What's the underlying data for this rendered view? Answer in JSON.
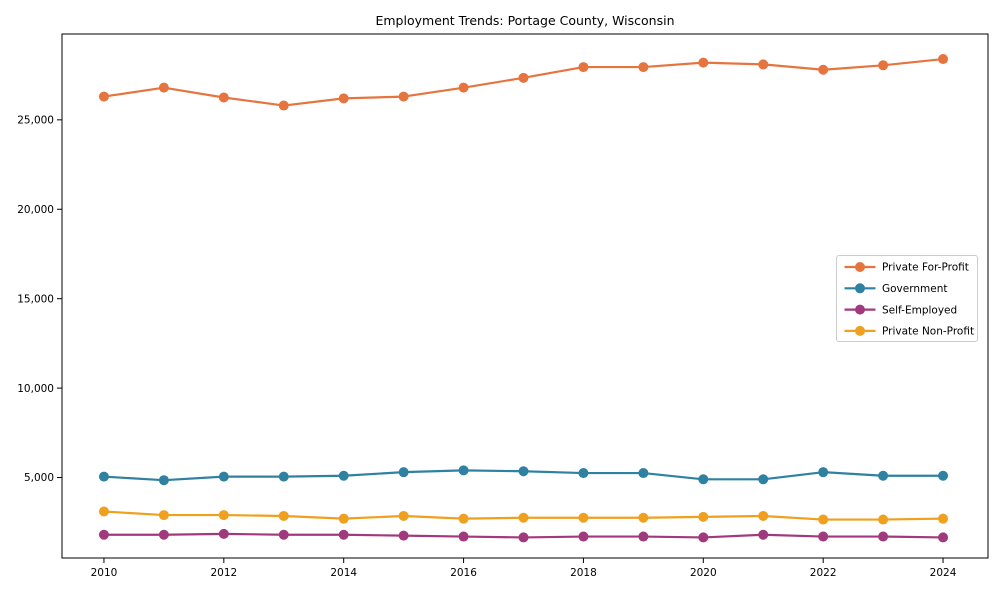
{
  "figure": {
    "title": "Employment Trends: Portage County, Wisconsin"
  },
  "chart_data": {
    "type": "line",
    "title": "Employment Trends: Portage County, Wisconsin",
    "xlabel": "",
    "ylabel": "",
    "grid": false,
    "marker": "circle",
    "x": [
      2010,
      2011,
      2012,
      2013,
      2014,
      2015,
      2016,
      2017,
      2018,
      2019,
      2020,
      2021,
      2022,
      2023,
      2024
    ],
    "series": [
      {
        "name": "Private For-Profit",
        "color": "#e5743f",
        "values": [
          26300,
          26800,
          26250,
          25800,
          26200,
          26300,
          26800,
          27350,
          27950,
          27950,
          28200,
          28100,
          27800,
          28050,
          28400
        ]
      },
      {
        "name": "Government",
        "color": "#2f81a2",
        "values": [
          5050,
          4850,
          5050,
          5050,
          5100,
          5300,
          5400,
          5350,
          5250,
          5250,
          4900,
          4900,
          5300,
          5100,
          5100
        ]
      },
      {
        "name": "Self-Employed",
        "color": "#a13a7c",
        "values": [
          1800,
          1800,
          1850,
          1800,
          1800,
          1750,
          1700,
          1650,
          1700,
          1700,
          1650,
          1800,
          1700,
          1700,
          1650
        ]
      },
      {
        "name": "Private Non-Profit",
        "color": "#efa01e",
        "values": [
          3100,
          2900,
          2900,
          2850,
          2700,
          2850,
          2700,
          2750,
          2750,
          2750,
          2800,
          2850,
          2650,
          2650,
          2700
        ]
      }
    ],
    "x_ticks": [
      2010,
      2012,
      2014,
      2016,
      2018,
      2020,
      2022,
      2024
    ],
    "x_tick_labels": [
      "2010",
      "2012",
      "2014",
      "2016",
      "2018",
      "2020",
      "2022",
      "2024"
    ],
    "y_ticks": [
      5000,
      10000,
      15000,
      20000,
      25000
    ],
    "y_tick_labels": [
      "5,000",
      "10,000",
      "15,000",
      "20,000",
      "25,000"
    ],
    "xlim": [
      2009.3,
      2024.75
    ],
    "ylim": [
      500,
      29800
    ],
    "legend": {
      "position": "right",
      "entries": [
        "Private For-Profit",
        "Government",
        "Self-Employed",
        "Private Non-Profit"
      ]
    },
    "colors": {
      "spine": "#000000",
      "tick_text": "#000000",
      "legend_border": "#cccccc",
      "legend_background": "#ffffff",
      "plot_background": "#ffffff"
    }
  }
}
